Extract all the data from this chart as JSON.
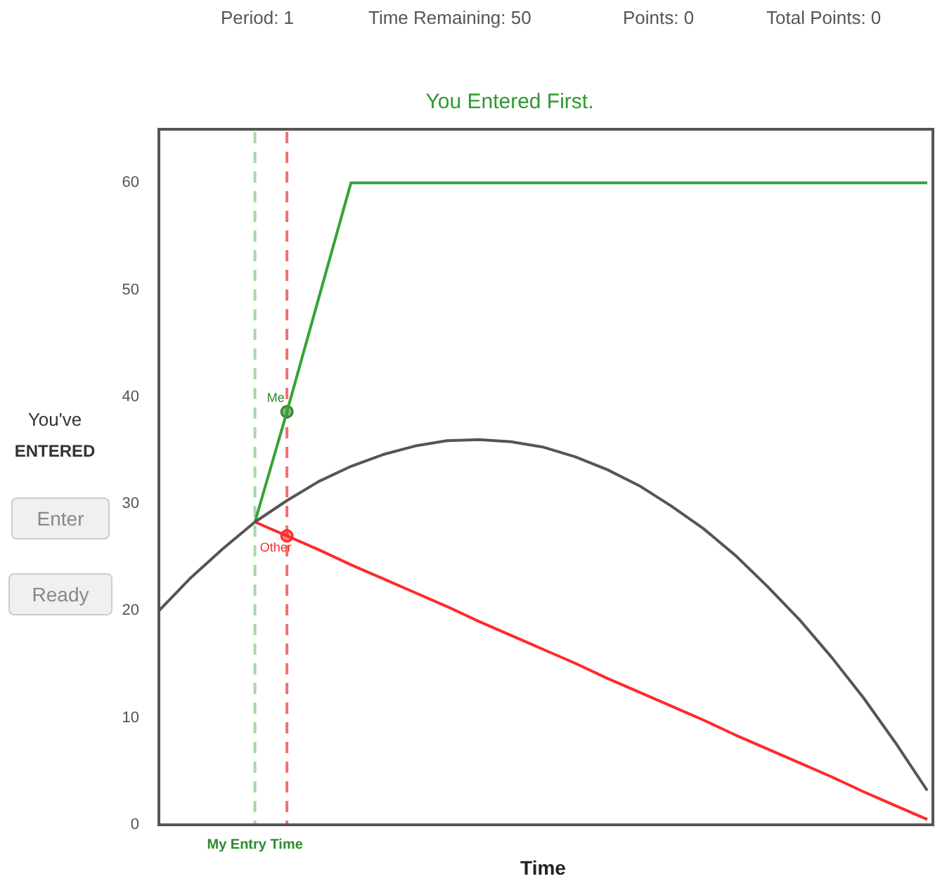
{
  "chart_data": {
    "type": "line",
    "title": "You Entered First.",
    "xlabel": "Time",
    "annotations": [
      "Period: 1",
      "Time Remaining: 50",
      "Points: 0",
      "Total Points: 0",
      "You've",
      "ENTERED",
      "Enter",
      "Ready",
      "My Entry Time"
    ],
    "categories": [
      null,
      null,
      null,
      null,
      null,
      null,
      null,
      null,
      null,
      null,
      null,
      null,
      null,
      null,
      null,
      null,
      null,
      null,
      null,
      null,
      null,
      null,
      null,
      null,
      null
    ],
    "ylim": [
      0,
      65
    ],
    "yticks": [
      0,
      10,
      20,
      30,
      40,
      50,
      60
    ],
    "tick_labels": "y",
    "grid": false,
    "legend": false,
    "series": [
      {
        "color": "#555555",
        "marker": "none",
        "values": [
          20.0,
          23.1,
          25.8,
          28.3,
          30.3,
          32.1,
          33.5,
          34.6,
          35.4,
          35.9,
          36.0,
          35.8,
          35.3,
          34.4,
          33.2,
          31.7,
          29.8,
          27.7,
          25.2,
          22.3,
          19.2,
          15.7,
          11.9,
          7.7,
          3.2
        ]
      },
      {
        "color": "#36a336",
        "marker": "none",
        "values": [
          null,
          null,
          null,
          28.3,
          38.6,
          49.3,
          60,
          60,
          60,
          60,
          60,
          60,
          60,
          60,
          60,
          60,
          60,
          60,
          60,
          60,
          60,
          60,
          60,
          60,
          60
        ]
      },
      {
        "color": "#ff2a2a",
        "marker": "none",
        "values": [
          null,
          null,
          null,
          28.3,
          27.0,
          25.7,
          24.3,
          23.0,
          21.7,
          20.4,
          19.0,
          17.7,
          16.4,
          15.1,
          13.7,
          12.4,
          11.1,
          9.8,
          8.4,
          7.1,
          5.8,
          4.5,
          3.1,
          1.8,
          0.5
        ]
      },
      {
        "name": "Me",
        "color": "#2e8b2e",
        "marker": "circle",
        "values": [
          null,
          null,
          null,
          null,
          38.6,
          null,
          null,
          null,
          null,
          null,
          null,
          null,
          null,
          null,
          null,
          null,
          null,
          null,
          null,
          null,
          null,
          null,
          null,
          null,
          null
        ]
      },
      {
        "name": "Other",
        "color": "#ff2a2a",
        "marker": "circle",
        "values": [
          null,
          null,
          null,
          null,
          27.0,
          null,
          null,
          null,
          null,
          null,
          null,
          null,
          null,
          null,
          null,
          null,
          null,
          null,
          null,
          null,
          null,
          null,
          null,
          null,
          null
        ]
      }
    ]
  }
}
